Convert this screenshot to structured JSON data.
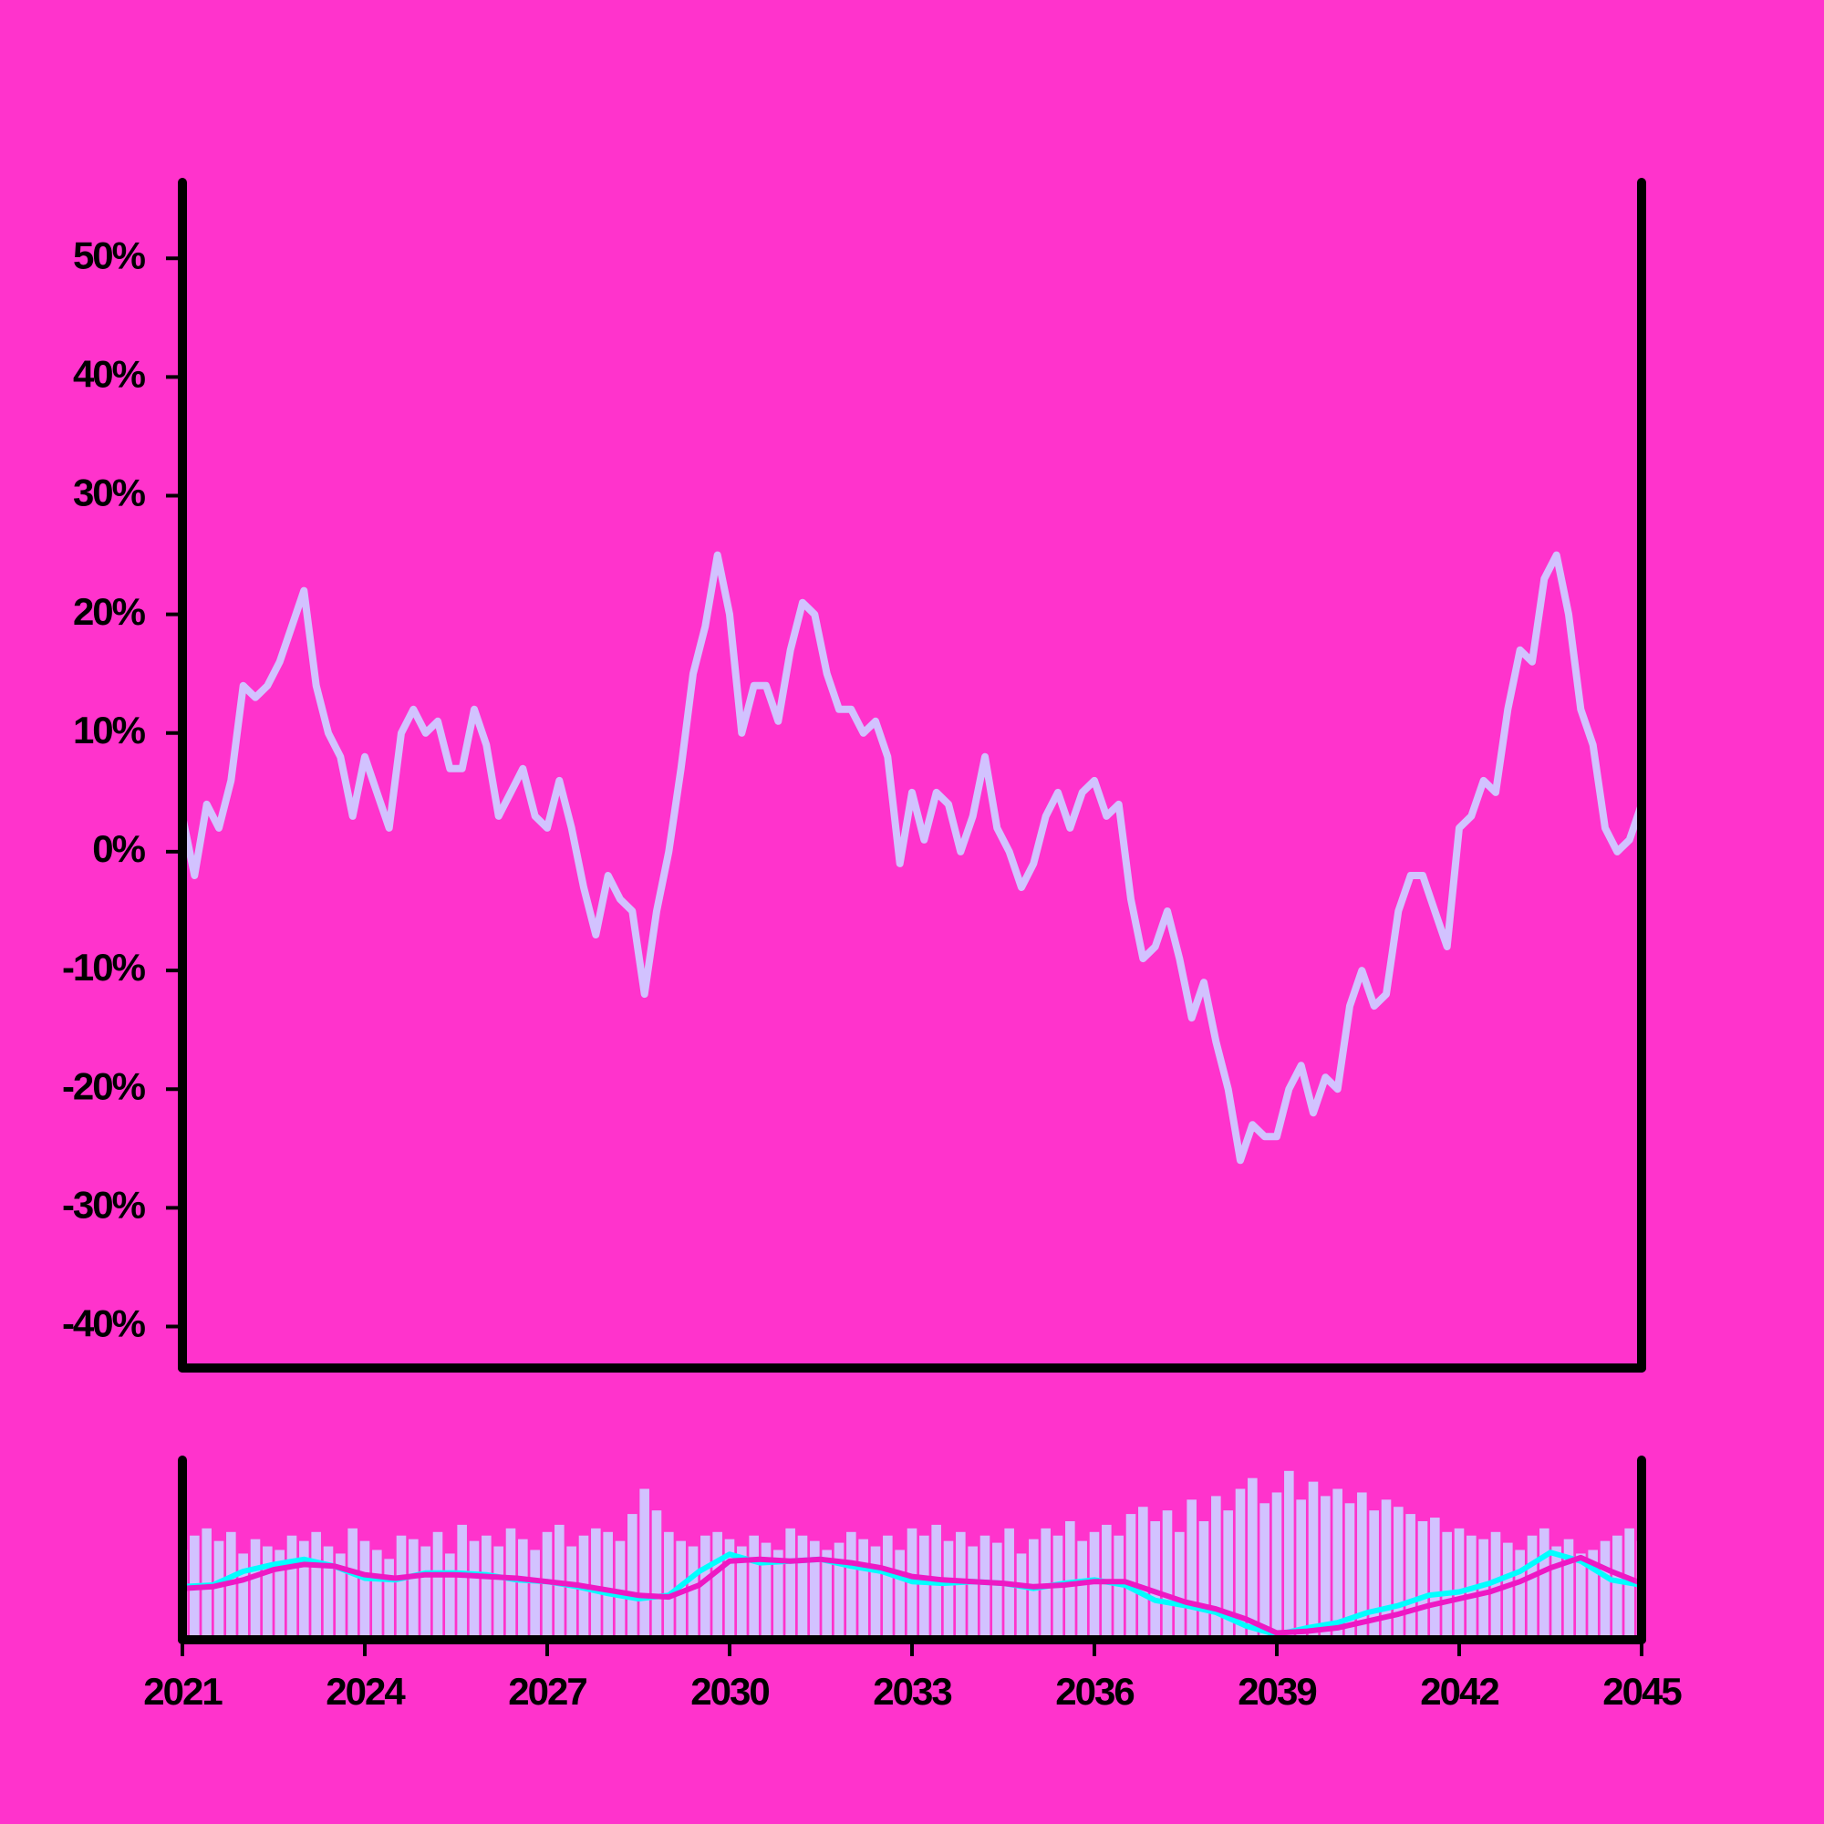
{
  "chart_data": [
    {
      "type": "line",
      "x": [
        2021,
        2021.2,
        2021.4,
        2021.6,
        2021.8,
        2022,
        2022.2,
        2022.4,
        2022.6,
        2022.8,
        2023,
        2023.2,
        2023.4,
        2023.6,
        2023.8,
        2024,
        2024.2,
        2024.4,
        2024.6,
        2024.8,
        2025,
        2025.2,
        2025.4,
        2025.6,
        2025.8,
        2026,
        2026.2,
        2026.4,
        2026.6,
        2026.8,
        2027,
        2027.2,
        2027.4,
        2027.6,
        2027.8,
        2028,
        2028.2,
        2028.4,
        2028.6,
        2028.8,
        2029,
        2029.2,
        2029.4,
        2029.6,
        2029.8,
        2030,
        2030.2,
        2030.4,
        2030.6,
        2030.8,
        2031,
        2031.2,
        2031.4,
        2031.6,
        2031.8,
        2032,
        2032.2,
        2032.4,
        2032.6,
        2032.8,
        2033,
        2033.2,
        2033.4,
        2033.6,
        2033.8,
        2034,
        2034.2,
        2034.4,
        2034.6,
        2034.8,
        2035,
        2035.2,
        2035.4,
        2035.6,
        2035.8,
        2036,
        2036.2,
        2036.4,
        2036.6,
        2036.8,
        2037,
        2037.2,
        2037.4,
        2037.6,
        2037.8,
        2038,
        2038.2,
        2038.4,
        2038.6,
        2038.8,
        2039,
        2039.2,
        2039.4,
        2039.6,
        2039.8,
        2040,
        2040.2,
        2040.4,
        2040.6,
        2040.8,
        2041,
        2041.2,
        2041.4,
        2041.6,
        2041.8,
        2042,
        2042.2,
        2042.4,
        2042.6,
        2042.8,
        2043,
        2043.2,
        2043.4,
        2043.6,
        2043.8,
        2044,
        2044.2,
        2044.4,
        2044.6,
        2044.8,
        2045
      ],
      "series": [
        {
          "color": "#d2c2ff",
          "values": [
            3,
            -2,
            4,
            2,
            6,
            14,
            13,
            14,
            16,
            19,
            22,
            14,
            10,
            8,
            3,
            8,
            5,
            2,
            10,
            12,
            10,
            11,
            7,
            7,
            12,
            9,
            3,
            5,
            7,
            3,
            2,
            6,
            2,
            -3,
            -7,
            -2,
            -4,
            -5,
            -12,
            -5,
            0,
            7,
            15,
            19,
            25,
            20,
            10,
            14,
            14,
            11,
            17,
            21,
            20,
            15,
            12,
            12,
            10,
            11,
            8,
            -1,
            5,
            1,
            5,
            4,
            0,
            3,
            8,
            2,
            0,
            -3,
            -1,
            3,
            5,
            2,
            5,
            6,
            3,
            4,
            -4,
            -9,
            -8,
            -5,
            -9,
            -14,
            -11,
            -16,
            -20,
            -26,
            -23,
            -24,
            -24,
            -20,
            -18,
            -22,
            -19,
            -20,
            -13,
            -10,
            -13,
            -12,
            -5,
            -2,
            -2,
            -5,
            -8,
            2,
            3,
            6,
            5,
            12,
            17,
            16,
            23,
            25,
            20,
            12,
            9,
            2,
            0,
            1,
            4
          ]
        }
      ],
      "xlim": [
        2021,
        2045
      ],
      "ylim": [
        -43.5,
        56.4
      ],
      "yticks": [
        {
          "value": -40,
          "label": "-40%"
        },
        {
          "value": -30,
          "label": "-30%"
        },
        {
          "value": -20,
          "label": "-20%"
        },
        {
          "value": -10,
          "label": "-10%"
        },
        {
          "value": 0,
          "label": "0%"
        },
        {
          "value": 10,
          "label": "10%"
        },
        {
          "value": 20,
          "label": "20%"
        },
        {
          "value": 30,
          "label": "30%"
        },
        {
          "value": 40,
          "label": "40%"
        },
        {
          "value": 50,
          "label": "50%"
        }
      ]
    },
    {
      "type": "bar",
      "x": [
        2021,
        2021.2,
        2021.4,
        2021.6,
        2021.8,
        2022,
        2022.2,
        2022.4,
        2022.6,
        2022.8,
        2023,
        2023.2,
        2023.4,
        2023.6,
        2023.8,
        2024,
        2024.2,
        2024.4,
        2024.6,
        2024.8,
        2025,
        2025.2,
        2025.4,
        2025.6,
        2025.8,
        2026,
        2026.2,
        2026.4,
        2026.6,
        2026.8,
        2027,
        2027.2,
        2027.4,
        2027.6,
        2027.8,
        2028,
        2028.2,
        2028.4,
        2028.6,
        2028.8,
        2029,
        2029.2,
        2029.4,
        2029.6,
        2029.8,
        2030,
        2030.2,
        2030.4,
        2030.6,
        2030.8,
        2031,
        2031.2,
        2031.4,
        2031.6,
        2031.8,
        2032,
        2032.2,
        2032.4,
        2032.6,
        2032.8,
        2033,
        2033.2,
        2033.4,
        2033.6,
        2033.8,
        2034,
        2034.2,
        2034.4,
        2034.6,
        2034.8,
        2035,
        2035.2,
        2035.4,
        2035.6,
        2035.8,
        2036,
        2036.2,
        2036.4,
        2036.6,
        2036.8,
        2037,
        2037.2,
        2037.4,
        2037.6,
        2037.8,
        2038,
        2038.2,
        2038.4,
        2038.6,
        2038.8,
        2039,
        2039.2,
        2039.4,
        2039.6,
        2039.8,
        2040,
        2040.2,
        2040.4,
        2040.6,
        2040.8,
        2041,
        2041.2,
        2041.4,
        2041.6,
        2041.8,
        2042,
        2042.2,
        2042.4,
        2042.6,
        2042.8,
        2043,
        2043.2,
        2043.4,
        2043.6,
        2043.8,
        2044,
        2044.2,
        2044.4,
        2044.6,
        2044.8,
        2045
      ],
      "values": [
        50,
        58,
        62,
        55,
        60,
        48,
        56,
        52,
        50,
        58,
        55,
        60,
        52,
        48,
        62,
        55,
        50,
        45,
        58,
        56,
        52,
        60,
        48,
        64,
        55,
        58,
        52,
        62,
        56,
        50,
        60,
        64,
        52,
        58,
        62,
        60,
        55,
        70,
        84,
        72,
        60,
        55,
        52,
        58,
        60,
        56,
        52,
        58,
        54,
        50,
        62,
        58,
        55,
        50,
        54,
        60,
        56,
        52,
        58,
        50,
        62,
        58,
        64,
        55,
        60,
        52,
        58,
        54,
        62,
        48,
        56,
        62,
        58,
        66,
        55,
        60,
        64,
        58,
        70,
        74,
        66,
        72,
        60,
        78,
        66,
        80,
        72,
        84,
        90,
        76,
        82,
        94,
        78,
        88,
        80,
        84,
        76,
        82,
        72,
        78,
        74,
        70,
        66,
        68,
        60,
        62,
        58,
        56,
        60,
        54,
        50,
        58,
        62,
        52,
        56,
        48,
        50,
        55,
        58,
        62,
        55
      ],
      "series": [
        {
          "color": "#00ffff",
          "axis": "y2",
          "x": [
            2021,
            2021.5,
            2022,
            2022.5,
            2023,
            2023.5,
            2024,
            2024.5,
            2025,
            2025.5,
            2026,
            2026.5,
            2027,
            2027.5,
            2028,
            2028.5,
            2029,
            2029.5,
            2030,
            2030.5,
            2031,
            2031.5,
            2032,
            2032.5,
            2033,
            2033.5,
            2034,
            2034.5,
            2035,
            2035.5,
            2036,
            2036.5,
            2037,
            2037.5,
            2038,
            2038.5,
            2039,
            2039.5,
            2040,
            2040.5,
            2041,
            2041.5,
            2042,
            2042.5,
            2043,
            2043.5,
            2044,
            2044.5,
            2045
          ],
          "values": [
            1,
            2,
            10,
            14,
            17,
            13,
            6,
            5,
            9,
            9,
            8,
            5,
            4,
            1,
            -3,
            -6,
            -4,
            10,
            20,
            15,
            16,
            17,
            13,
            10,
            4,
            3,
            4,
            3,
            0,
            3,
            5,
            2,
            -7,
            -10,
            -14,
            -22,
            -27,
            -23,
            -20,
            -14,
            -10,
            -4,
            -2,
            3,
            10,
            21,
            16,
            5,
            2
          ]
        },
        {
          "color": "#ee18c4",
          "axis": "y2",
          "x": [
            2021,
            2021.5,
            2022,
            2022.5,
            2023,
            2023.5,
            2024,
            2024.5,
            2025,
            2025.5,
            2026,
            2026.5,
            2027,
            2027.5,
            2028,
            2028.5,
            2029,
            2029.5,
            2030,
            2030.5,
            2031,
            2031.5,
            2032,
            2032.5,
            2033,
            2033.5,
            2034,
            2034.5,
            2035,
            2035.5,
            2036,
            2036.5,
            2037,
            2037.5,
            2038,
            2038.5,
            2039,
            2039.5,
            2040,
            2040.5,
            2041,
            2041.5,
            2042,
            2042.5,
            2043,
            2043.5,
            2044,
            2044.5,
            2045
          ],
          "values": [
            0,
            1,
            5,
            11,
            14,
            13,
            8,
            6,
            8,
            8,
            7,
            6,
            4,
            2,
            -1,
            -4,
            -5,
            2,
            16,
            17,
            16,
            17,
            15,
            12,
            7,
            5,
            4,
            3,
            1,
            2,
            4,
            4,
            -2,
            -8,
            -12,
            -18,
            -26,
            -25,
            -23,
            -19,
            -15,
            -10,
            -6,
            -2,
            4,
            12,
            18,
            10,
            3
          ]
        }
      ],
      "bar_color": "#d2c2ff",
      "xlim": [
        2021,
        2045
      ],
      "ylim": [
        0,
        100
      ],
      "y2lim": [
        -30,
        75
      ],
      "xticks": [
        2021,
        2024,
        2027,
        2030,
        2033,
        2036,
        2039,
        2042,
        2045
      ]
    }
  ]
}
